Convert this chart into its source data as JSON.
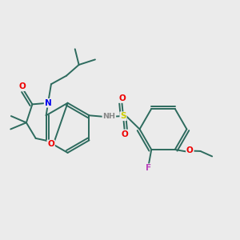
{
  "background_color": "#ebebeb",
  "bond_color": "#2d6b5e",
  "atom_colors": {
    "N": "#0000ee",
    "O": "#ee0000",
    "F": "#bb44bb",
    "S": "#cccc00",
    "H": "#888888",
    "C": "#2d6b5e"
  },
  "figsize": [
    3.0,
    3.0
  ],
  "dpi": 100
}
